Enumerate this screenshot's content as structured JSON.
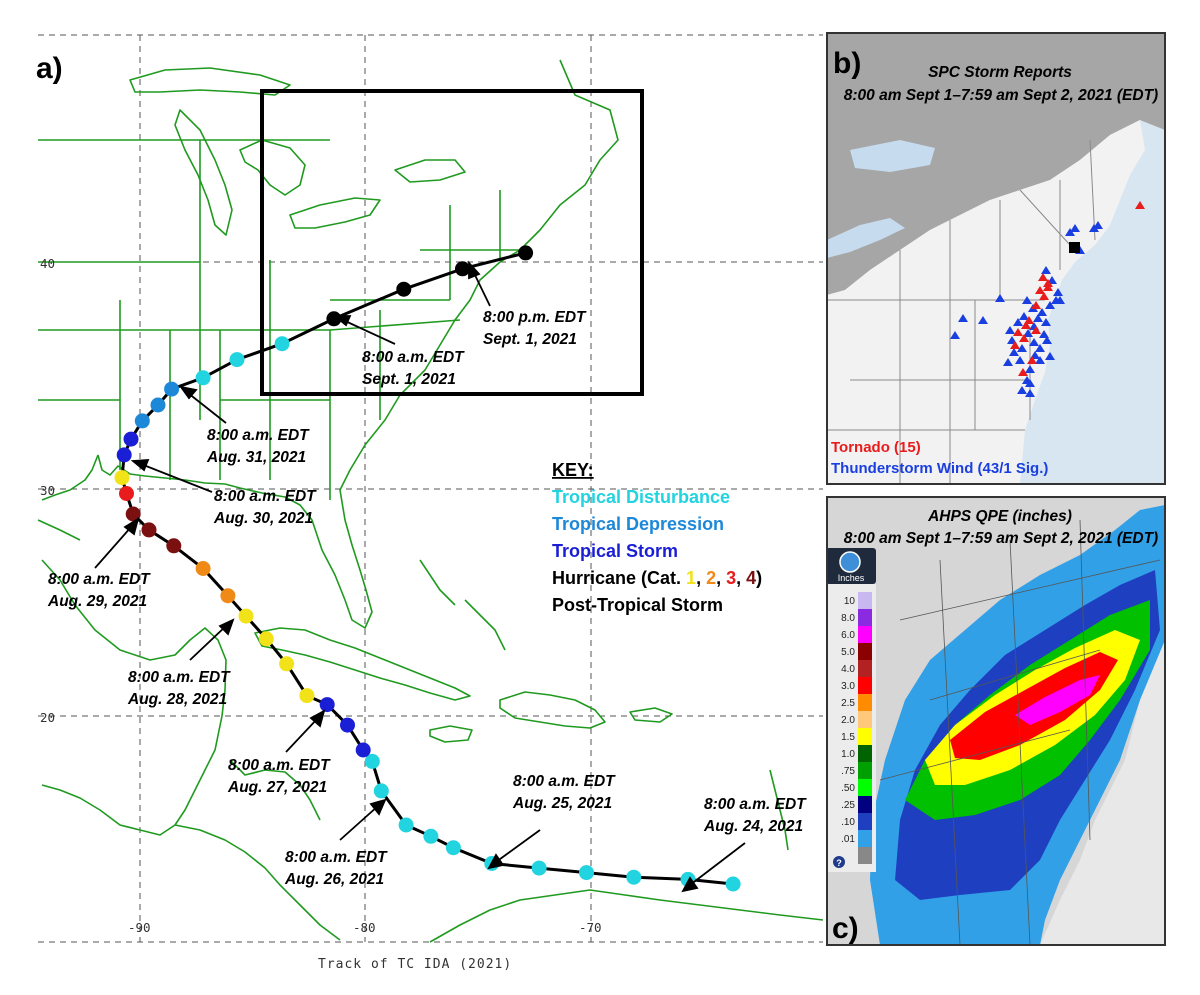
{
  "panel_a": {
    "letter": "a)",
    "caption": "Track of TC IDA (2021)",
    "lon_ticks": [
      "-90",
      "-80",
      "-70"
    ],
    "lat_ticks": [
      "40",
      "30",
      "20"
    ],
    "annotations": [
      {
        "line1": "8:00 a.m. EDT",
        "line2": "Aug. 24, 2021"
      },
      {
        "line1": "8:00 a.m. EDT",
        "line2": "Aug. 25, 2021"
      },
      {
        "line1": "8:00 a.m. EDT",
        "line2": "Aug. 26, 2021"
      },
      {
        "line1": "8:00 a.m. EDT",
        "line2": "Aug. 27, 2021"
      },
      {
        "line1": "8:00 a.m. EDT",
        "line2": "Aug. 28, 2021"
      },
      {
        "line1": "8:00 a.m. EDT",
        "line2": "Aug. 29, 2021"
      },
      {
        "line1": "8:00 a.m. EDT",
        "line2": "Aug. 30, 2021"
      },
      {
        "line1": "8:00 a.m. EDT",
        "line2": "Aug. 31, 2021"
      },
      {
        "line1": "8:00 a.m. EDT",
        "line2": "Sept. 1, 2021"
      },
      {
        "line1": "8:00 p.m. EDT",
        "line2": "Sept. 1, 2021"
      }
    ],
    "key": {
      "title": "KEY:",
      "disturbance": "Tropical Disturbance",
      "depression": "Tropical Depression",
      "storm": "Tropical Storm",
      "hurricane_prefix": "Hurricane (Cat. ",
      "cat1": "1",
      "cat2": "2",
      "cat3": "3",
      "cat4": "4",
      "sep": ", ",
      "hurricane_suffix": ")",
      "post_tropical": "Post-Tropical Storm"
    },
    "colors": {
      "disturbance": "#22d3e0",
      "depression": "#1e88d8",
      "storm": "#1a1fd6",
      "cat1": "#f2e21a",
      "cat2": "#f08a16",
      "cat3": "#e81c1c",
      "cat4": "#7a1010",
      "post_tropical": "#000000"
    },
    "track_points": [
      {
        "lon": -63.7,
        "lat": 12.6,
        "cls": "disturbance"
      },
      {
        "lon": -65.7,
        "lat": 12.8,
        "cls": "disturbance"
      },
      {
        "lon": -68.1,
        "lat": 12.9,
        "cls": "disturbance"
      },
      {
        "lon": -70.2,
        "lat": 13.1,
        "cls": "disturbance"
      },
      {
        "lon": -72.3,
        "lat": 13.3,
        "cls": "disturbance"
      },
      {
        "lon": -74.4,
        "lat": 13.5,
        "cls": "disturbance"
      },
      {
        "lon": -76.1,
        "lat": 14.2,
        "cls": "disturbance"
      },
      {
        "lon": -77.1,
        "lat": 14.7,
        "cls": "disturbance"
      },
      {
        "lon": -78.2,
        "lat": 15.2,
        "cls": "disturbance"
      },
      {
        "lon": -79.3,
        "lat": 16.7,
        "cls": "disturbance"
      },
      {
        "lon": -79.7,
        "lat": 18.0,
        "cls": "disturbance"
      },
      {
        "lon": -80.1,
        "lat": 18.5,
        "cls": "storm"
      },
      {
        "lon": -80.8,
        "lat": 19.6,
        "cls": "storm"
      },
      {
        "lon": -81.7,
        "lat": 20.5,
        "cls": "storm"
      },
      {
        "lon": -82.6,
        "lat": 20.9,
        "cls": "cat1"
      },
      {
        "lon": -83.5,
        "lat": 22.3,
        "cls": "cat1"
      },
      {
        "lon": -84.4,
        "lat": 23.4,
        "cls": "cat1"
      },
      {
        "lon": -85.3,
        "lat": 24.4,
        "cls": "cat1"
      },
      {
        "lon": -86.1,
        "lat": 25.3,
        "cls": "cat2"
      },
      {
        "lon": -87.2,
        "lat": 26.5,
        "cls": "cat2"
      },
      {
        "lon": -88.5,
        "lat": 27.5,
        "cls": "cat4"
      },
      {
        "lon": -89.6,
        "lat": 28.2,
        "cls": "cat4"
      },
      {
        "lon": -90.3,
        "lat": 28.9,
        "cls": "cat4"
      },
      {
        "lon": -90.6,
        "lat": 29.8,
        "cls": "cat3"
      },
      {
        "lon": -90.8,
        "lat": 30.5,
        "cls": "cat1"
      },
      {
        "lon": -90.7,
        "lat": 31.5,
        "cls": "storm"
      },
      {
        "lon": -90.4,
        "lat": 32.2,
        "cls": "storm"
      },
      {
        "lon": -89.9,
        "lat": 33.0,
        "cls": "depression"
      },
      {
        "lon": -89.2,
        "lat": 33.7,
        "cls": "depression"
      },
      {
        "lon": -88.6,
        "lat": 34.4,
        "cls": "depression"
      },
      {
        "lon": -87.2,
        "lat": 34.9,
        "cls": "disturbance"
      },
      {
        "lon": -85.7,
        "lat": 35.7,
        "cls": "disturbance"
      },
      {
        "lon": -83.7,
        "lat": 36.4,
        "cls": "disturbance"
      },
      {
        "lon": -81.4,
        "lat": 37.5,
        "cls": "post_tropical"
      },
      {
        "lon": -78.3,
        "lat": 38.8,
        "cls": "post_tropical"
      },
      {
        "lon": -75.7,
        "lat": 39.7,
        "cls": "post_tropical"
      },
      {
        "lon": -72.9,
        "lat": 40.4,
        "cls": "post_tropical"
      }
    ]
  },
  "panel_b": {
    "letter": "b)",
    "title_line1": "SPC Storm Reports",
    "title_line2": "8:00 am Sept 1–7:59 am Sept 2, 2021 (EDT)",
    "legend_tornado": "Tornado (15)",
    "legend_wind": "Thunderstorm Wind (43/1 Sig.)",
    "tornado_color": "#e81c1c",
    "wind_color": "#1a3fe0"
  },
  "panel_c": {
    "letter": "c)",
    "title_line1": "AHPS QPE (inches)",
    "title_line2": "8:00 am Sept 1–7:59 am Sept 2, 2021 (EDT)",
    "badge": "Inches",
    "scale": [
      {
        "label": "10",
        "color": "#c8b8f0"
      },
      {
        "label": "8.0",
        "color": "#8a2be2"
      },
      {
        "label": "6.0",
        "color": "#ff00ff"
      },
      {
        "label": "5.0",
        "color": "#8b0000"
      },
      {
        "label": "4.0",
        "color": "#b22222"
      },
      {
        "label": "3.0",
        "color": "#ff0000"
      },
      {
        "label": "2.5",
        "color": "#ff8c00"
      },
      {
        "label": "2.0",
        "color": "#ffc87a"
      },
      {
        "label": "1.5",
        "color": "#ffff00"
      },
      {
        "label": "1.0",
        "color": "#006400"
      },
      {
        "label": "0.75",
        "color": "#00a000"
      },
      {
        "label": "0.50",
        "color": "#00ff00"
      },
      {
        "label": "0.25",
        "color": "#000080"
      },
      {
        "label": "0.10",
        "color": "#1e40c0"
      },
      {
        "label": "0.01",
        "color": "#32a0e6"
      },
      {
        "label": "",
        "color": "#888888"
      }
    ],
    "scale_labels": [
      "10",
      "8.0",
      "6.0",
      "5.0",
      "4.0",
      "3.0",
      "2.5",
      "2.0",
      "1.5",
      "1.0",
      ".75",
      ".50",
      ".25",
      ".10",
      ".01"
    ]
  }
}
